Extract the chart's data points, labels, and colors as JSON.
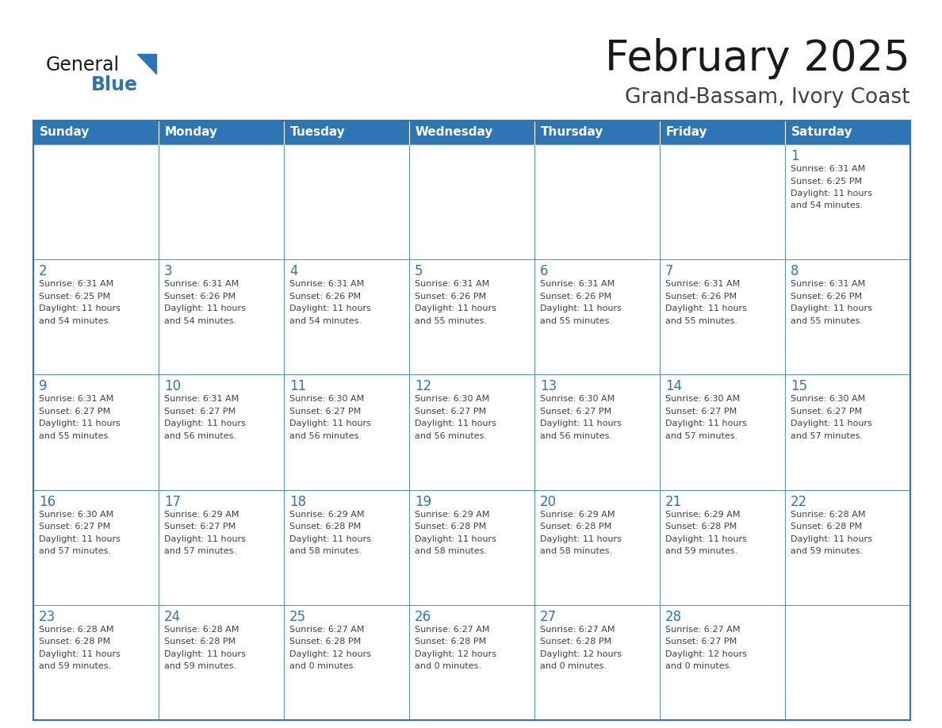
{
  "title": "February 2025",
  "subtitle": "Grand-Bassam, Ivory Coast",
  "days_of_week": [
    "Sunday",
    "Monday",
    "Tuesday",
    "Wednesday",
    "Thursday",
    "Friday",
    "Saturday"
  ],
  "header_bg": "#2E75B6",
  "header_text": "#FFFFFF",
  "cell_bg": "#FFFFFF",
  "cell_bg_alt": "#F2F2F2",
  "cell_border": "#2E75B6",
  "day_num_color": "#2E75B6",
  "info_text_color": "#404040",
  "title_color": "#1a1a1a",
  "subtitle_color": "#404040",
  "calendar": [
    [
      null,
      null,
      null,
      null,
      null,
      null,
      1
    ],
    [
      2,
      3,
      4,
      5,
      6,
      7,
      8
    ],
    [
      9,
      10,
      11,
      12,
      13,
      14,
      15
    ],
    [
      16,
      17,
      18,
      19,
      20,
      21,
      22
    ],
    [
      23,
      24,
      25,
      26,
      27,
      28,
      null
    ]
  ],
  "sun_info": {
    "1": {
      "sunrise": "6:31 AM",
      "sunset": "6:25 PM",
      "daylight_h": "11 hours",
      "daylight_m": "54 minutes."
    },
    "2": {
      "sunrise": "6:31 AM",
      "sunset": "6:25 PM",
      "daylight_h": "11 hours",
      "daylight_m": "54 minutes."
    },
    "3": {
      "sunrise": "6:31 AM",
      "sunset": "6:26 PM",
      "daylight_h": "11 hours",
      "daylight_m": "54 minutes."
    },
    "4": {
      "sunrise": "6:31 AM",
      "sunset": "6:26 PM",
      "daylight_h": "11 hours",
      "daylight_m": "54 minutes."
    },
    "5": {
      "sunrise": "6:31 AM",
      "sunset": "6:26 PM",
      "daylight_h": "11 hours",
      "daylight_m": "55 minutes."
    },
    "6": {
      "sunrise": "6:31 AM",
      "sunset": "6:26 PM",
      "daylight_h": "11 hours",
      "daylight_m": "55 minutes."
    },
    "7": {
      "sunrise": "6:31 AM",
      "sunset": "6:26 PM",
      "daylight_h": "11 hours",
      "daylight_m": "55 minutes."
    },
    "8": {
      "sunrise": "6:31 AM",
      "sunset": "6:26 PM",
      "daylight_h": "11 hours",
      "daylight_m": "55 minutes."
    },
    "9": {
      "sunrise": "6:31 AM",
      "sunset": "6:27 PM",
      "daylight_h": "11 hours",
      "daylight_m": "55 minutes."
    },
    "10": {
      "sunrise": "6:31 AM",
      "sunset": "6:27 PM",
      "daylight_h": "11 hours",
      "daylight_m": "56 minutes."
    },
    "11": {
      "sunrise": "6:30 AM",
      "sunset": "6:27 PM",
      "daylight_h": "11 hours",
      "daylight_m": "56 minutes."
    },
    "12": {
      "sunrise": "6:30 AM",
      "sunset": "6:27 PM",
      "daylight_h": "11 hours",
      "daylight_m": "56 minutes."
    },
    "13": {
      "sunrise": "6:30 AM",
      "sunset": "6:27 PM",
      "daylight_h": "11 hours",
      "daylight_m": "56 minutes."
    },
    "14": {
      "sunrise": "6:30 AM",
      "sunset": "6:27 PM",
      "daylight_h": "11 hours",
      "daylight_m": "57 minutes."
    },
    "15": {
      "sunrise": "6:30 AM",
      "sunset": "6:27 PM",
      "daylight_h": "11 hours",
      "daylight_m": "57 minutes."
    },
    "16": {
      "sunrise": "6:30 AM",
      "sunset": "6:27 PM",
      "daylight_h": "11 hours",
      "daylight_m": "57 minutes."
    },
    "17": {
      "sunrise": "6:29 AM",
      "sunset": "6:27 PM",
      "daylight_h": "11 hours",
      "daylight_m": "57 minutes."
    },
    "18": {
      "sunrise": "6:29 AM",
      "sunset": "6:28 PM",
      "daylight_h": "11 hours",
      "daylight_m": "58 minutes."
    },
    "19": {
      "sunrise": "6:29 AM",
      "sunset": "6:28 PM",
      "daylight_h": "11 hours",
      "daylight_m": "58 minutes."
    },
    "20": {
      "sunrise": "6:29 AM",
      "sunset": "6:28 PM",
      "daylight_h": "11 hours",
      "daylight_m": "58 minutes."
    },
    "21": {
      "sunrise": "6:29 AM",
      "sunset": "6:28 PM",
      "daylight_h": "11 hours",
      "daylight_m": "59 minutes."
    },
    "22": {
      "sunrise": "6:28 AM",
      "sunset": "6:28 PM",
      "daylight_h": "11 hours",
      "daylight_m": "59 minutes."
    },
    "23": {
      "sunrise": "6:28 AM",
      "sunset": "6:28 PM",
      "daylight_h": "11 hours",
      "daylight_m": "59 minutes."
    },
    "24": {
      "sunrise": "6:28 AM",
      "sunset": "6:28 PM",
      "daylight_h": "11 hours",
      "daylight_m": "59 minutes."
    },
    "25": {
      "sunrise": "6:27 AM",
      "sunset": "6:28 PM",
      "daylight_h": "12 hours",
      "daylight_m": "0 minutes."
    },
    "26": {
      "sunrise": "6:27 AM",
      "sunset": "6:28 PM",
      "daylight_h": "12 hours",
      "daylight_m": "0 minutes."
    },
    "27": {
      "sunrise": "6:27 AM",
      "sunset": "6:28 PM",
      "daylight_h": "12 hours",
      "daylight_m": "0 minutes."
    },
    "28": {
      "sunrise": "6:27 AM",
      "sunset": "6:27 PM",
      "daylight_h": "12 hours",
      "daylight_m": "0 minutes."
    }
  }
}
